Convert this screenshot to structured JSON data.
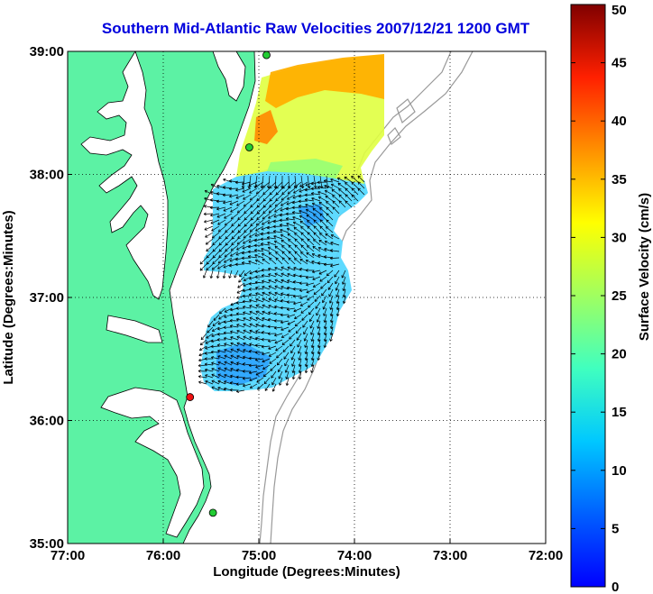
{
  "title": "Southern Mid-Atlantic Raw Velocities 2007/12/21 1200 GMT",
  "map": {
    "x_label": "Longitude (Degrees:Minutes)",
    "y_label": "Latitude (Degrees:Minutes)",
    "x_ticks": [
      {
        "value": -77,
        "label": "77:00"
      },
      {
        "value": -76,
        "label": "76:00"
      },
      {
        "value": -75,
        "label": "75:00"
      },
      {
        "value": -74,
        "label": "74:00"
      },
      {
        "value": -73,
        "label": "73:00"
      },
      {
        "value": -72,
        "label": "72:00"
      }
    ],
    "y_ticks": [
      {
        "value": 35,
        "label": "35:00"
      },
      {
        "value": 36,
        "label": "36:00"
      },
      {
        "value": 37,
        "label": "37:00"
      },
      {
        "value": 38,
        "label": "38:00"
      },
      {
        "value": 39,
        "label": "39:00"
      }
    ],
    "lon_range": [
      -77,
      -72
    ],
    "lat_range": [
      35,
      39
    ],
    "grid": true,
    "land_color": "#5cf2a4",
    "stations": [
      {
        "lon": -74.92,
        "lat": 38.97,
        "color": "#22cc33"
      },
      {
        "lon": -75.1,
        "lat": 38.22,
        "color": "#22cc33"
      },
      {
        "lon": -75.72,
        "lat": 36.19,
        "color": "#ee1111"
      },
      {
        "lon": -75.48,
        "lat": 35.25,
        "color": "#22cc33"
      }
    ]
  },
  "colorbar": {
    "label": "Surface Velocity (cm/s)",
    "min": 0,
    "max": 50,
    "colormap": "jet",
    "ticks": [
      {
        "value": 0,
        "label": "0"
      },
      {
        "value": 5,
        "label": "5"
      },
      {
        "value": 10,
        "label": "10"
      },
      {
        "value": 15,
        "label": "15"
      },
      {
        "value": 20,
        "label": "20"
      },
      {
        "value": 25,
        "label": "25"
      },
      {
        "value": 30,
        "label": "30"
      },
      {
        "value": 35,
        "label": "35"
      },
      {
        "value": 40,
        "label": "40"
      },
      {
        "value": 45,
        "label": "45"
      },
      {
        "value": 50,
        "label": "50"
      }
    ]
  }
}
